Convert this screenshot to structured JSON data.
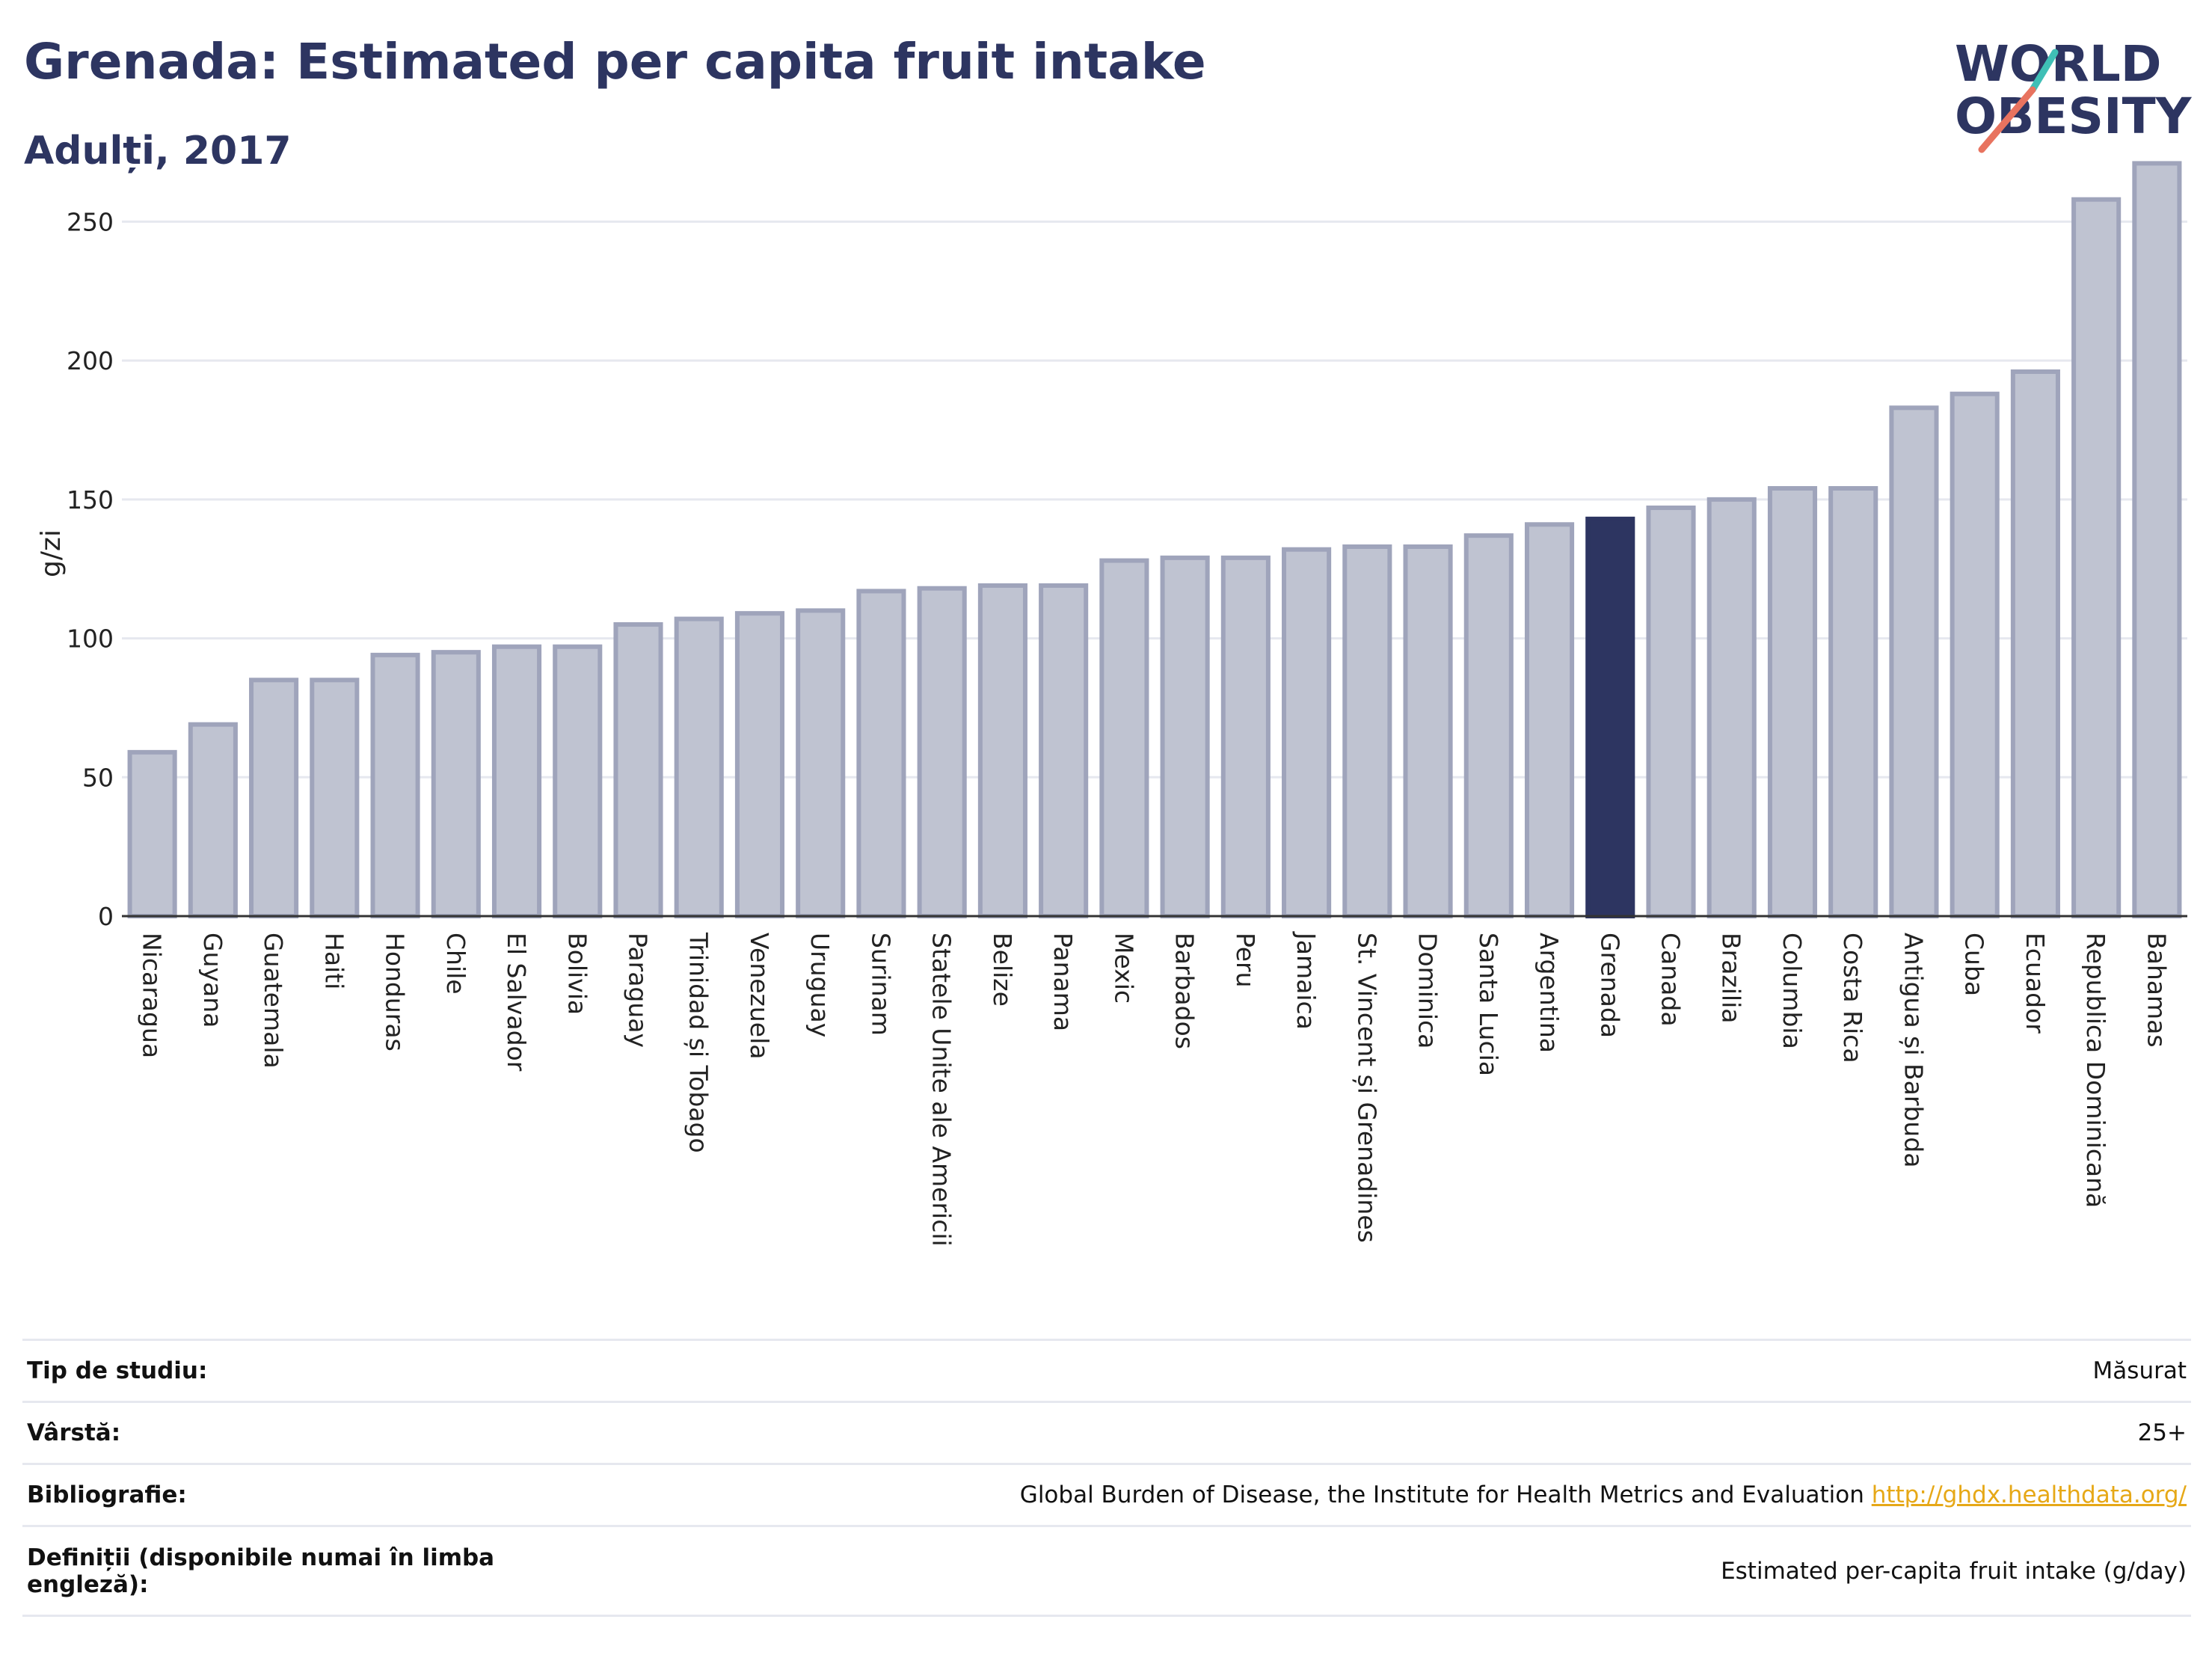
{
  "header": {
    "title": "Grenada: Estimated per capita fruit intake",
    "subtitle": "Adulți, 2017"
  },
  "logo": {
    "line1": "WORLD",
    "line2": "OBESITY"
  },
  "colors": {
    "highlight": "#2d3561",
    "bar_fill": "#bfc3d1",
    "bar_stroke": "#9fa4bb",
    "grid": "#e6e8ef",
    "logo_text": "#2d3561",
    "logo_teal": "#3fbfb6",
    "logo_coral": "#e8735f",
    "link": "#e6a817"
  },
  "chart_data": {
    "type": "bar",
    "ylabel": "g/zi",
    "ylim": [
      0,
      280
    ],
    "yticks": [
      0,
      50,
      100,
      150,
      200,
      250
    ],
    "highlight": "Grenada",
    "categories": [
      "Nicaragua",
      "Guyana",
      "Guatemala",
      "Haiti",
      "Honduras",
      "Chile",
      "El Salvador",
      "Bolivia",
      "Paraguay",
      "Trinidad și Tobago",
      "Venezuela",
      "Uruguay",
      "Surinam",
      "Statele Unite ale Americii",
      "Belize",
      "Panama",
      "Mexic",
      "Barbados",
      "Peru",
      "Jamaica",
      "St. Vincent și Grenadines",
      "Dominica",
      "Santa Lucia",
      "Argentina",
      "Grenada",
      "Canada",
      "Brazilia",
      "Columbia",
      "Costa Rica",
      "Antigua și Barbuda",
      "Cuba",
      "Ecuador",
      "Republica Dominicană",
      "Bahamas"
    ],
    "values": [
      59,
      69,
      85,
      85,
      94,
      95,
      97,
      97,
      105,
      107,
      109,
      110,
      117,
      118,
      119,
      119,
      128,
      129,
      129,
      132,
      133,
      133,
      137,
      141,
      143,
      147,
      150,
      154,
      154,
      183,
      188,
      196,
      258,
      271
    ]
  },
  "info": [
    {
      "key": "Tip de studiu:",
      "value": "Măsurat"
    },
    {
      "key": "Vârstă:",
      "value": "25+"
    },
    {
      "key": "Bibliografie:",
      "value": "Global Burden of Disease, the Institute for Health Metrics and Evaluation",
      "link": "http://ghdx.healthdata.org/"
    },
    {
      "key": "Definiții (disponibile numai în limba engleză):",
      "value": "Estimated per-capita fruit intake (g/day)"
    }
  ]
}
